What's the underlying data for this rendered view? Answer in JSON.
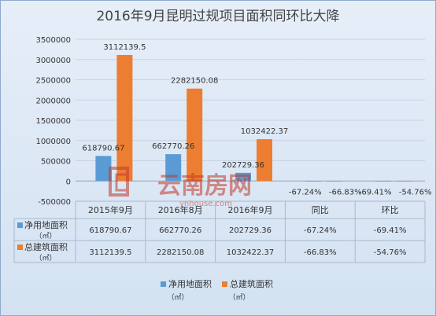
{
  "chart_data": {
    "type": "bar",
    "title": "2016年9月昆明过规项目面积同环比大降",
    "categories": [
      "2015年9月",
      "2016年8月",
      "2016年9月",
      "同比",
      "环比"
    ],
    "y_ticks": [
      "-500000",
      "0",
      "500000",
      "1000000",
      "1500000",
      "2000000",
      "2500000",
      "3000000",
      "3500000"
    ],
    "ylim": [
      -500000,
      3500000
    ],
    "grid": true,
    "legend_position": "bottom",
    "series": [
      {
        "name": "净用地面积（㎡）",
        "legend_label": "净用地面积",
        "unit_label": "（㎡）",
        "color": "#5b9bd5",
        "values": [
          618790.67,
          662770.26,
          202729.36,
          -67.24,
          -69.41
        ],
        "data_labels": [
          "618790.67",
          "662770.26",
          "202729.36",
          "-67.24%",
          "-69.41%"
        ]
      },
      {
        "name": "总建筑面积（㎡）",
        "legend_label": "总建筑面积",
        "unit_label": "（㎡）",
        "color": "#ed7d31",
        "values": [
          3112139.5,
          2282150.08,
          1032422.37,
          -66.83,
          -54.76
        ],
        "data_labels": [
          "3112139.5",
          "2282150.08",
          "1032422.37",
          "-66.83%",
          "-54.76%"
        ]
      }
    ],
    "table": {
      "rows": [
        {
          "label": "净用地面积",
          "unit": "（㎡）",
          "cells": [
            "618790.67",
            "662770.26",
            "202729.36",
            "-67.24%",
            "-69.41%"
          ]
        },
        {
          "label": "总建筑面积",
          "unit": "（㎡）",
          "cells": [
            "3112139.5",
            "2282150.08",
            "1032422.37",
            "-66.83%",
            "-54.76%"
          ]
        }
      ]
    }
  },
  "watermark": {
    "text": "云南房网",
    "url": "ynhouse.com",
    "color": "#c0392b"
  }
}
